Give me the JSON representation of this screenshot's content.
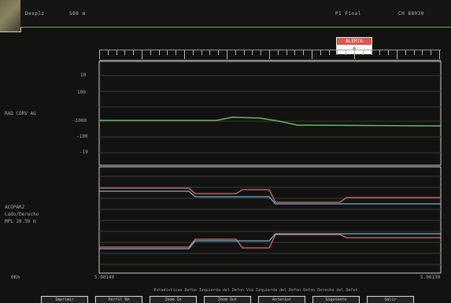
{
  "header": {
    "left_label": "Desplz",
    "left_value": "500 m",
    "right_label": "PI Final",
    "right_value": "CH 88030"
  },
  "legend": {
    "title": "ALERTA",
    "value": "0"
  },
  "upper_panel": {
    "label": "RAD CORV AG",
    "ticks": [
      "10",
      "100",
      "-1000",
      "-100",
      "-10"
    ]
  },
  "lower_panel": {
    "label_lines": [
      "ACOPAR2",
      "Lado/Derecho",
      "MPL 28.58 m"
    ]
  },
  "x_axis": {
    "start": "5.00140",
    "end": "5.00130",
    "left_tag": "0Km"
  },
  "footer_caption": "Estadisticas Defon Izquierda del Defon Via Izquierda del Defon Defon Derecho del Defon",
  "buttons": [
    "Imprimir",
    "Perfil Km",
    "Zoom In",
    "Zoom Out",
    "Anterior",
    "Siguiente",
    "Salir"
  ],
  "colors": {
    "green": "#69b364",
    "red": "#d96e68",
    "blue": "#6fb3d8",
    "grid": "#3a3a36",
    "frame": "#cfcfc8"
  }
}
